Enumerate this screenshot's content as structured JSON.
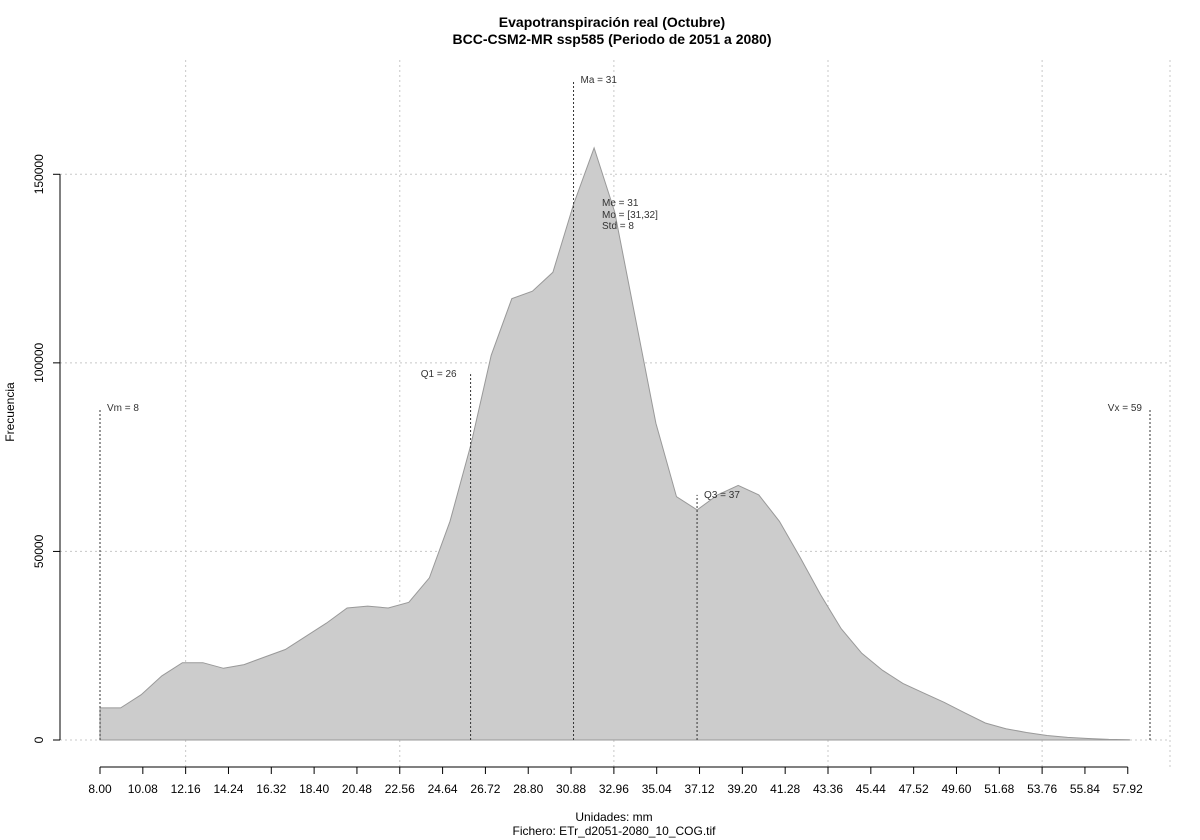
{
  "chart_data": {
    "type": "area",
    "title": "Evapotranspiración real (Octubre)",
    "subtitle": "BCC-CSM2-MR ssp585 (Periodo de 2051 a 2080)",
    "xlabel": "Unidades: mm",
    "ylabel": "Frecuencia",
    "footer": "Fichero: ETr_d2051-2080_10_COG.tif",
    "xlim": [
      8.0,
      59.0
    ],
    "ylim": [
      0,
      175000
    ],
    "y_ticks": [
      0,
      50000,
      100000,
      150000
    ],
    "y_tick_labels": [
      "0",
      "50000",
      "100000",
      "150000"
    ],
    "x_tick_labels": [
      "8.00",
      "10.08",
      "12.16",
      "14.24",
      "16.32",
      "18.40",
      "20.48",
      "22.56",
      "24.64",
      "26.72",
      "28.80",
      "30.88",
      "32.96",
      "35.04",
      "37.12",
      "39.20",
      "41.28",
      "43.36",
      "45.44",
      "47.52",
      "49.60",
      "51.68",
      "53.76",
      "55.84",
      "57.92"
    ],
    "grid": true,
    "fill_color": "#cccccc",
    "line_color": "#999999",
    "x": [
      8.0,
      9.0,
      10.0,
      11.0,
      12.0,
      13.0,
      14.0,
      15.0,
      16.0,
      17.0,
      18.0,
      19.0,
      20.0,
      21.0,
      22.0,
      23.0,
      24.0,
      25.0,
      26.0,
      27.0,
      28.0,
      29.0,
      30.0,
      31.0,
      32.0,
      33.0,
      34.0,
      35.0,
      36.0,
      37.0,
      38.0,
      39.0,
      40.0,
      41.0,
      42.0,
      43.0,
      44.0,
      45.0,
      46.0,
      47.0,
      48.0,
      49.0,
      50.0,
      51.0,
      52.0,
      53.0,
      54.0,
      55.0,
      56.0,
      57.0,
      58.0
    ],
    "y": [
      8500,
      8500,
      12000,
      17000,
      20500,
      20500,
      19000,
      20000,
      22000,
      24000,
      27500,
      31000,
      35000,
      35500,
      35000,
      36500,
      43000,
      58000,
      78000,
      102000,
      117000,
      119000,
      124000,
      142000,
      157000,
      140000,
      112000,
      84000,
      64500,
      61000,
      65000,
      67500,
      65000,
      58000,
      48500,
      38500,
      29500,
      23000,
      18500,
      15000,
      12500,
      10000,
      7200,
      4500,
      3000,
      2000,
      1200,
      700,
      400,
      150,
      50
    ],
    "markers": [
      {
        "label": "Vm = 8",
        "x": 8.0,
        "y_top": 88000
      },
      {
        "label": "Q1 = 26",
        "x": 26.0,
        "y_top": 97000
      },
      {
        "label": "Ma = 31",
        "x": 31.0,
        "y_top": 175000
      },
      {
        "label": "Q3 = 37",
        "x": 37.0,
        "y_top": 65000
      },
      {
        "label": "Vx = 59",
        "x": 59.0,
        "y_top": 88000
      }
    ],
    "stats_labels": [
      "Me = 31",
      "Mo = [31,32]",
      "Std = 8"
    ]
  }
}
